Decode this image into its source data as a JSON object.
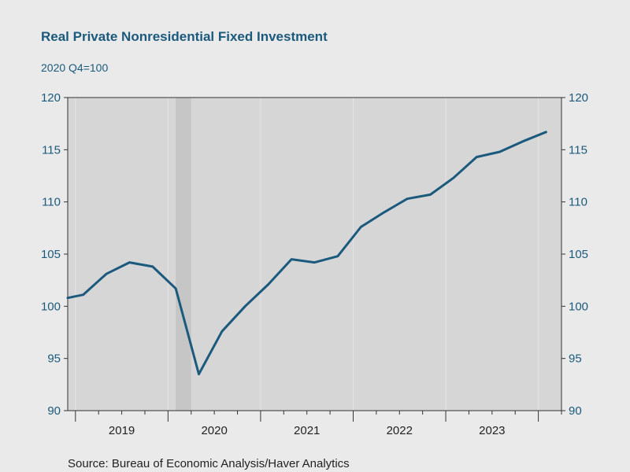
{
  "header": {
    "title": "Real Private Nonresidential Fixed Investment",
    "subtitle": "2020 Q4=100"
  },
  "footer": {
    "source": "Source:  Bureau of Economic Analysis/Haver Analytics"
  },
  "colors": {
    "line": "#1b5a7d",
    "plot_bg": "#d6d6d6",
    "recession": "#c6c6c6",
    "gridline": "#e4e4e4"
  },
  "chart_data": {
    "type": "line",
    "title": "Real Private Nonresidential Fixed Investment",
    "subtitle": "2020 Q4=100",
    "xlabel": "",
    "ylabel": "",
    "ylim": [
      90,
      120
    ],
    "yticks": [
      90,
      95,
      100,
      105,
      110,
      115,
      120
    ],
    "axis_both_sides": true,
    "grid": "vertical year boundaries",
    "year_labels": [
      "2019",
      "2020",
      "2021",
      "2022",
      "2023"
    ],
    "recession": {
      "start": "2020-02",
      "end": "2020-04"
    },
    "x": [
      "2018-12",
      "2019-Q1",
      "2019-Q2",
      "2019-Q3",
      "2019-Q4",
      "2020-Q1",
      "2020-Q2",
      "2020-Q3",
      "2020-Q4",
      "2021-Q1",
      "2021-Q2",
      "2021-Q3",
      "2021-Q4",
      "2022-Q1",
      "2022-Q2",
      "2022-Q3",
      "2022-Q4",
      "2023-Q1",
      "2023-Q2",
      "2023-Q3",
      "2023-Q4",
      "2024-Q1"
    ],
    "series": [
      {
        "values": [
          100.8,
          101.1,
          103.1,
          104.2,
          103.8,
          101.7,
          93.5,
          97.6,
          100.0,
          102.1,
          104.5,
          104.2,
          104.8,
          107.6,
          109.0,
          110.3,
          110.7,
          112.3,
          114.3,
          114.8,
          115.8,
          116.7
        ]
      }
    ]
  }
}
